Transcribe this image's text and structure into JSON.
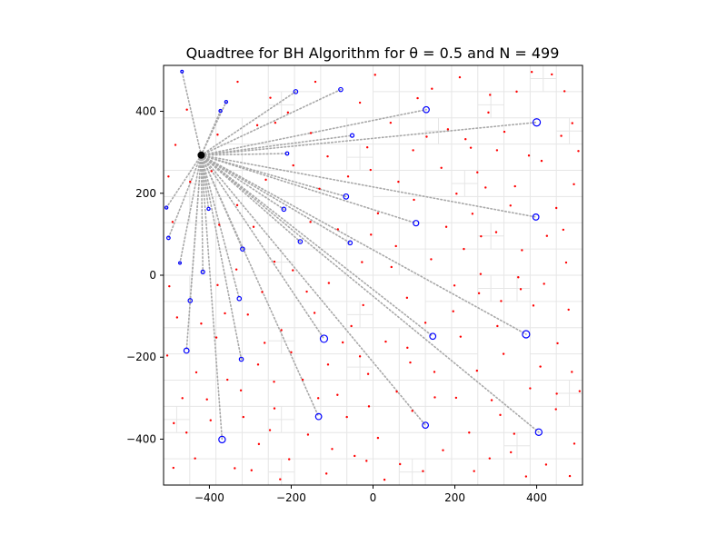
{
  "chart_data": {
    "type": "scatter",
    "title": "Quadtree for BH Algorithm for θ = 0.5 and N = 499",
    "xlabel": "",
    "ylabel": "",
    "xlim": [
      -512,
      512
    ],
    "ylim": [
      -512,
      512
    ],
    "x_ticks": [
      -400,
      -200,
      0,
      200,
      400
    ],
    "y_ticks": [
      -400,
      -200,
      0,
      200,
      400
    ],
    "x_tick_labels": [
      "−400",
      "−200",
      "0",
      "200",
      "400"
    ],
    "y_tick_labels": [
      "−400",
      "−200",
      "0",
      "200",
      "400"
    ],
    "grid": "quadtree cells (light gray)",
    "colors": {
      "bodies": "#ff0000",
      "centers_of_mass": "#0000ff",
      "target": "#000000",
      "interaction_lines": "#a8a8a8",
      "quadtree": "#e6e6e6"
    },
    "target_body": {
      "x": -420,
      "y": 293
    },
    "centers_of_mass": [
      {
        "x": 400,
        "y": 373,
        "r": 4.0
      },
      {
        "x": 130,
        "y": 404,
        "r": 3.3
      },
      {
        "x": 398,
        "y": 142,
        "r": 3.3
      },
      {
        "x": 105,
        "y": 127,
        "r": 3.0
      },
      {
        "x": 374,
        "y": -144,
        "r": 4.0
      },
      {
        "x": 146,
        "y": -149,
        "r": 3.3
      },
      {
        "x": 405,
        "y": -383,
        "r": 3.6
      },
      {
        "x": 128,
        "y": -366,
        "r": 3.3
      },
      {
        "x": -120,
        "y": -155,
        "r": 4.0
      },
      {
        "x": -133,
        "y": -345,
        "r": 3.3
      },
      {
        "x": -369,
        "y": -401,
        "r": 3.6
      },
      {
        "x": -322,
        "y": -205,
        "r": 2.2
      },
      {
        "x": -327,
        "y": -57,
        "r": 2.2
      },
      {
        "x": -447,
        "y": -62,
        "r": 2.2
      },
      {
        "x": -456,
        "y": -184,
        "r": 2.8
      },
      {
        "x": -319,
        "y": 64,
        "r": 2.2
      },
      {
        "x": -178,
        "y": 82,
        "r": 2.2
      },
      {
        "x": -66,
        "y": 192,
        "r": 2.8
      },
      {
        "x": -56,
        "y": 79,
        "r": 2.2
      },
      {
        "x": -189,
        "y": 448,
        "r": 2.2
      },
      {
        "x": -51,
        "y": 341,
        "r": 2.0
      },
      {
        "x": -79,
        "y": 453,
        "r": 2.2
      },
      {
        "x": -210,
        "y": 297,
        "r": 1.8
      },
      {
        "x": -218,
        "y": 161,
        "r": 2.2
      },
      {
        "x": -416,
        "y": 8,
        "r": 2.0
      },
      {
        "x": -500,
        "y": 91,
        "r": 1.8
      },
      {
        "x": -402,
        "y": 162,
        "r": 1.6
      },
      {
        "x": -359,
        "y": 423,
        "r": 1.6
      },
      {
        "x": -373,
        "y": 401,
        "r": 1.6
      },
      {
        "x": -467,
        "y": 497,
        "r": 1.4
      },
      {
        "x": -505,
        "y": 165,
        "r": 1.6
      },
      {
        "x": -472,
        "y": 30,
        "r": 1.4
      }
    ],
    "bodies": [
      {
        "x": 460,
        "y": 340
      },
      {
        "x": 487,
        "y": 371
      },
      {
        "x": 412,
        "y": 279
      },
      {
        "x": 491,
        "y": 222
      },
      {
        "x": 448,
        "y": 164
      },
      {
        "x": 351,
        "y": 448
      },
      {
        "x": 282,
        "y": 397
      },
      {
        "x": 226,
        "y": 332
      },
      {
        "x": 303,
        "y": 305
      },
      {
        "x": 255,
        "y": 251
      },
      {
        "x": 347,
        "y": 217
      },
      {
        "x": 204,
        "y": 199
      },
      {
        "x": 243,
        "y": 150
      },
      {
        "x": 301,
        "y": 105
      },
      {
        "x": 364,
        "y": 61
      },
      {
        "x": 472,
        "y": 31
      },
      {
        "x": 418,
        "y": -21
      },
      {
        "x": 259,
        "y": -44
      },
      {
        "x": 196,
        "y": -88
      },
      {
        "x": 304,
        "y": -124
      },
      {
        "x": 451,
        "y": -166
      },
      {
        "x": 486,
        "y": -236
      },
      {
        "x": 384,
        "y": -276
      },
      {
        "x": 254,
        "y": -233
      },
      {
        "x": 203,
        "y": -299
      },
      {
        "x": 311,
        "y": -341
      },
      {
        "x": 447,
        "y": -327
      },
      {
        "x": 492,
        "y": -411
      },
      {
        "x": 423,
        "y": -462
      },
      {
        "x": 337,
        "y": -432
      },
      {
        "x": 247,
        "y": -478
      },
      {
        "x": 171,
        "y": -427
      },
      {
        "x": 66,
        "y": -461
      },
      {
        "x": 12,
        "y": -397
      },
      {
        "x": -45,
        "y": -441
      },
      {
        "x": -114,
        "y": -484
      },
      {
        "x": -205,
        "y": -449
      },
      {
        "x": -279,
        "y": -412
      },
      {
        "x": -338,
        "y": -471
      },
      {
        "x": -435,
        "y": -447
      },
      {
        "x": -487,
        "y": -361
      },
      {
        "x": -406,
        "y": -303
      },
      {
        "x": -323,
        "y": -281
      },
      {
        "x": -241,
        "y": -325
      },
      {
        "x": -172,
        "y": -255
      },
      {
        "x": -87,
        "y": -292
      },
      {
        "x": -12,
        "y": -241
      },
      {
        "x": 58,
        "y": -284
      },
      {
        "x": 91,
        "y": -213
      },
      {
        "x": 31,
        "y": -162
      },
      {
        "x": -53,
        "y": -124
      },
      {
        "x": -143,
        "y": -92
      },
      {
        "x": -224,
        "y": -134
      },
      {
        "x": -281,
        "y": -218
      },
      {
        "x": -383,
        "y": -152
      },
      {
        "x": -479,
        "y": -103
      },
      {
        "x": -498,
        "y": -27
      },
      {
        "x": -380,
        "y": -24
      },
      {
        "x": -271,
        "y": -41
      },
      {
        "x": -196,
        "y": 12
      },
      {
        "x": -108,
        "y": -19
      },
      {
        "x": -27,
        "y": 32
      },
      {
        "x": 56,
        "y": 71
      },
      {
        "x": 142,
        "y": 39
      },
      {
        "x": 222,
        "y": 64
      },
      {
        "x": 12,
        "y": 151
      },
      {
        "x": -61,
        "y": 241
      },
      {
        "x": -131,
        "y": 211
      },
      {
        "x": -262,
        "y": 233
      },
      {
        "x": -332,
        "y": 171
      },
      {
        "x": -447,
        "y": 228
      },
      {
        "x": -483,
        "y": 318
      },
      {
        "x": -380,
        "y": 343
      },
      {
        "x": -283,
        "y": 366
      },
      {
        "x": -208,
        "y": 397
      },
      {
        "x": -141,
        "y": 472
      },
      {
        "x": -32,
        "y": 421
      },
      {
        "x": 43,
        "y": 372
      },
      {
        "x": 98,
        "y": 305
      },
      {
        "x": 167,
        "y": 262
      },
      {
        "x": 62,
        "y": 228
      },
      {
        "x": -14,
        "y": 312
      },
      {
        "x": 144,
        "y": 455
      },
      {
        "x": 212,
        "y": 483
      },
      {
        "x": 388,
        "y": 496
      },
      {
        "x": 468,
        "y": 449
      },
      {
        "x": 502,
        "y": 303
      },
      {
        "x": 336,
        "y": 170
      },
      {
        "x": 425,
        "y": 96
      },
      {
        "x": 392,
        "y": -74
      },
      {
        "x": 319,
        "y": -192
      },
      {
        "x": 128,
        "y": -116
      },
      {
        "x": 83,
        "y": -55
      },
      {
        "x": -24,
        "y": -73
      },
      {
        "x": -162,
        "y": -40
      },
      {
        "x": -241,
        "y": 33
      },
      {
        "x": -306,
        "y": -96
      },
      {
        "x": -432,
        "y": -237
      },
      {
        "x": -317,
        "y": -346
      },
      {
        "x": -159,
        "y": -389
      },
      {
        "x": -64,
        "y": -346
      },
      {
        "x": 96,
        "y": -331
      },
      {
        "x": 235,
        "y": -384
      },
      {
        "x": 374,
        "y": -491
      },
      {
        "x": 481,
        "y": -490
      },
      {
        "x": 28,
        "y": -499
      },
      {
        "x": -227,
        "y": -498
      },
      {
        "x": -488,
        "y": -470
      },
      {
        "x": -456,
        "y": -384
      },
      {
        "x": -362,
        "y": -93
      },
      {
        "x": -292,
        "y": 118
      },
      {
        "x": -395,
        "y": 254
      },
      {
        "x": -152,
        "y": 347
      },
      {
        "x": 5,
        "y": 489
      },
      {
        "x": 109,
        "y": 432
      },
      {
        "x": 275,
        "y": 214
      },
      {
        "x": 381,
        "y": 292
      },
      {
        "x": 465,
        "y": 111
      },
      {
        "x": 361,
        "y": -34
      },
      {
        "x": 214,
        "y": -150
      },
      {
        "x": 150,
        "y": -236
      },
      {
        "x": -32,
        "y": -198
      },
      {
        "x": -110,
        "y": -218
      },
      {
        "x": -200,
        "y": -188
      },
      {
        "x": -252,
        "y": -378
      },
      {
        "x": -397,
        "y": -354
      },
      {
        "x": -466,
        "y": -300
      },
      {
        "x": -503,
        "y": -196
      },
      {
        "x": -420,
        "y": -118
      },
      {
        "x": -334,
        "y": 14
      },
      {
        "x": -153,
        "y": 130
      },
      {
        "x": -86,
        "y": 112
      },
      {
        "x": 45,
        "y": 20
      },
      {
        "x": 179,
        "y": 118
      },
      {
        "x": 263,
        "y": 3
      },
      {
        "x": 313,
        "y": -63
      },
      {
        "x": 478,
        "y": -84
      },
      {
        "x": 505,
        "y": -283
      },
      {
        "x": 409,
        "y": -223
      },
      {
        "x": 285,
        "y": -447
      },
      {
        "x": 122,
        "y": -478
      },
      {
        "x": -16,
        "y": -453
      },
      {
        "x": -100,
        "y": -424
      },
      {
        "x": -297,
        "y": -476
      },
      {
        "x": -356,
        "y": -255
      },
      {
        "x": -242,
        "y": -260
      },
      {
        "x": -74,
        "y": -164
      },
      {
        "x": 84,
        "y": -177
      },
      {
        "x": 199,
        "y": -25
      },
      {
        "x": 100,
        "y": 184
      },
      {
        "x": 183,
        "y": 356
      },
      {
        "x": 286,
        "y": 440
      },
      {
        "x": 437,
        "y": 490
      },
      {
        "x": 321,
        "y": 350
      },
      {
        "x": 264,
        "y": 95
      },
      {
        "x": -5,
        "y": 99
      },
      {
        "x": -195,
        "y": 268
      },
      {
        "x": -251,
        "y": 433
      },
      {
        "x": -331,
        "y": 472
      },
      {
        "x": -455,
        "y": 404
      },
      {
        "x": -500,
        "y": 241
      },
      {
        "x": -490,
        "y": 130
      },
      {
        "x": -376,
        "y": 123
      },
      {
        "x": -265,
        "y": -165
      },
      {
        "x": -134,
        "y": -300
      },
      {
        "x": -10,
        "y": -320
      },
      {
        "x": 151,
        "y": -298
      },
      {
        "x": 290,
        "y": -305
      },
      {
        "x": 345,
        "y": -387
      },
      {
        "x": 449,
        "y": -289
      },
      {
        "x": 355,
        "y": -5
      },
      {
        "x": 239,
        "y": 311
      },
      {
        "x": 131,
        "y": 338
      },
      {
        "x": -6,
        "y": 257
      },
      {
        "x": -111,
        "y": 290
      },
      {
        "x": -239,
        "y": 372
      }
    ]
  }
}
